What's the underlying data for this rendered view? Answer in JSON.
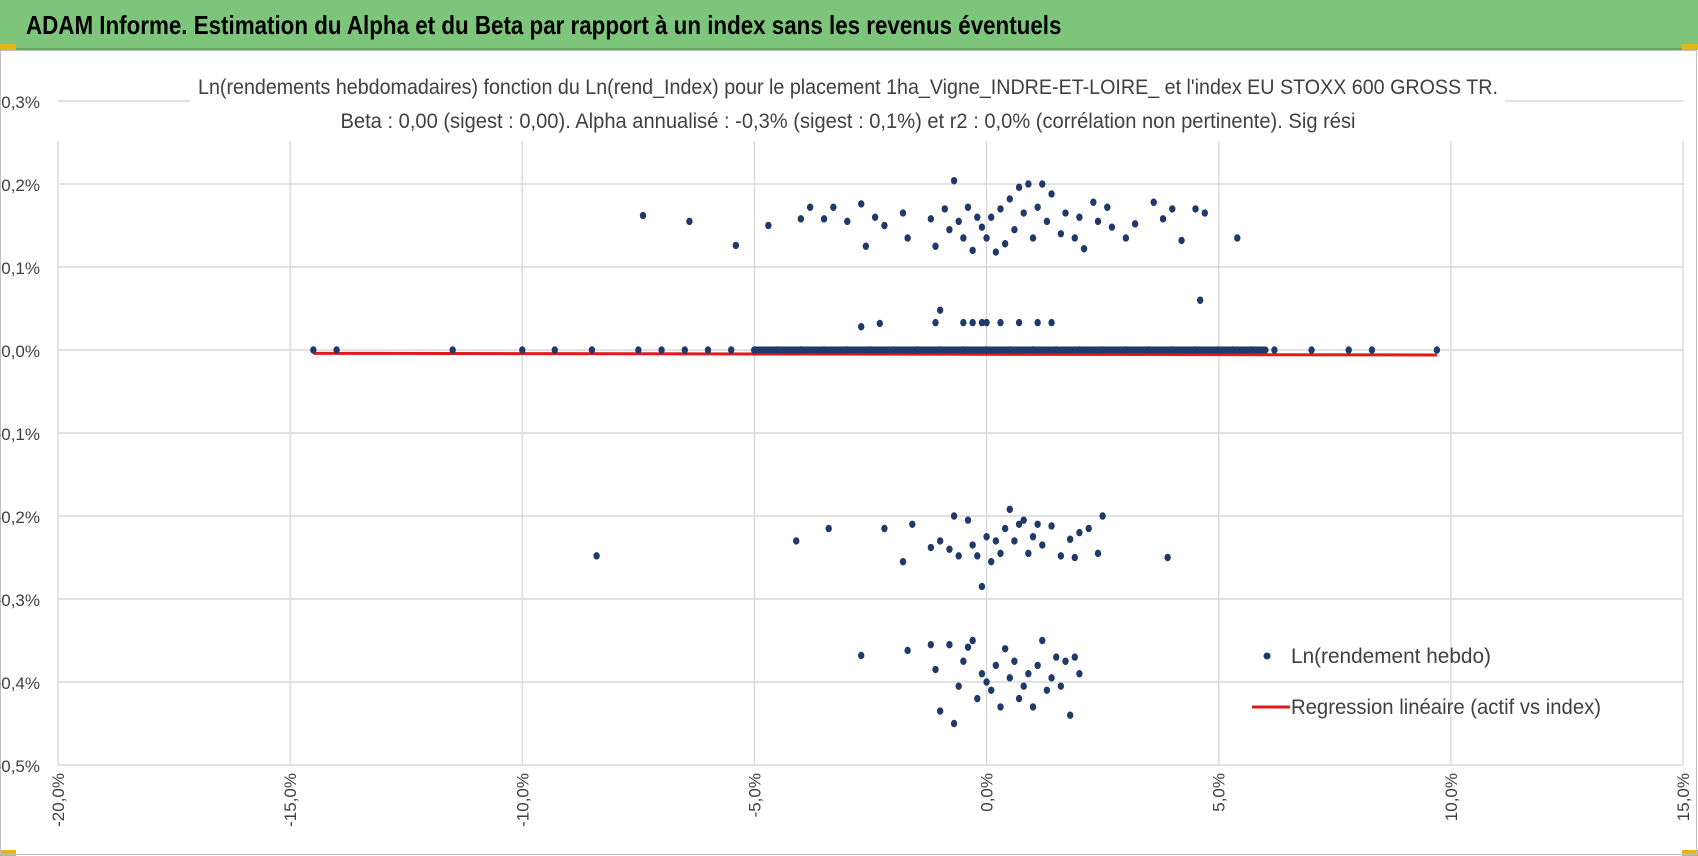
{
  "header": {
    "title": "ADAM Informe. Estimation du Alpha et du Beta par rapport à un index sans les revenus éventuels"
  },
  "colors": {
    "header_bg": "#7dc57b",
    "accent_corner": "#e2b714",
    "points": "#1f3a68",
    "regression": "#e3191c",
    "grid": "#d9d9d9"
  },
  "chart_data": {
    "type": "scatter",
    "title_line1": "Ln(rendements hebdomadaires) fonction du Ln(rend_Index) pour le placement 1ha_Vigne_INDRE-ET-LOIRE_ et l'index EU STOXX 600 GROSS TR.",
    "title_line2": "Beta : 0,00 (sigest : 0,00). Alpha annualisé : -0,3% (sigest : 0,1%) et r2 : 0,0% (corrélation non pertinente). Sig rési",
    "xlim": [
      -20,
      15
    ],
    "ylim": [
      -0.5,
      0.3
    ],
    "x_ticks": [
      -20,
      -15,
      -10,
      -5,
      0,
      5,
      10,
      15
    ],
    "y_ticks": [
      0.3,
      0.2,
      0.1,
      0.0,
      -0.1,
      -0.2,
      -0.3,
      -0.4,
      -0.5
    ],
    "x_tick_labels": [
      "-20,0%",
      "-15,0%",
      "-10,0%",
      "-5,0%",
      "0,0%",
      "5,0%",
      "10,0%",
      "15,0%"
    ],
    "y_tick_labels": [
      "0,3%",
      "0,2%",
      "0,1%",
      "0,0%",
      "-0,1%",
      "-0,2%",
      "-0,3%",
      "-0,4%",
      "-0,5%"
    ],
    "grid": true,
    "legend_position": "bottom-right",
    "series": [
      {
        "name": "Ln(rendement hebdo)",
        "kind": "scatter",
        "points": [
          [
            -14.5,
            0.0
          ],
          [
            -14.0,
            0.0
          ],
          [
            -11.5,
            0.0
          ],
          [
            -10.0,
            0.0
          ],
          [
            -9.3,
            0.0
          ],
          [
            -8.5,
            0.0
          ],
          [
            -7.5,
            0.0
          ],
          [
            -7.0,
            0.0
          ],
          [
            -6.5,
            0.0
          ],
          [
            -6.0,
            0.0
          ],
          [
            -5.5,
            0.0
          ],
          [
            -5.0,
            0.0
          ],
          [
            -4.5,
            0.0
          ],
          [
            -4.0,
            0.0
          ],
          [
            -3.5,
            0.0
          ],
          [
            -3.0,
            0.0
          ],
          [
            -2.5,
            0.0
          ],
          [
            -2.0,
            0.0
          ],
          [
            -1.5,
            0.0
          ],
          [
            -1.0,
            0.0
          ],
          [
            -0.5,
            0.0
          ],
          [
            0.0,
            0.0
          ],
          [
            0.5,
            0.0
          ],
          [
            1.0,
            0.0
          ],
          [
            1.5,
            0.0
          ],
          [
            2.0,
            0.0
          ],
          [
            2.5,
            0.0
          ],
          [
            3.0,
            0.0
          ],
          [
            3.5,
            0.0
          ],
          [
            4.0,
            0.0
          ],
          [
            4.5,
            0.0
          ],
          [
            5.0,
            0.0
          ],
          [
            5.3,
            0.0
          ],
          [
            5.7,
            0.0
          ],
          [
            6.2,
            0.0
          ],
          [
            7.0,
            0.0
          ],
          [
            7.8,
            0.0
          ],
          [
            8.3,
            0.0
          ],
          [
            9.7,
            0.0
          ],
          [
            -2.7,
            0.028
          ],
          [
            -2.3,
            0.032
          ],
          [
            -1.1,
            0.033
          ],
          [
            -1.0,
            0.048
          ],
          [
            -0.5,
            0.033
          ],
          [
            -0.3,
            0.033
          ],
          [
            -0.1,
            0.033
          ],
          [
            0.0,
            0.033
          ],
          [
            0.3,
            0.033
          ],
          [
            0.7,
            0.033
          ],
          [
            1.1,
            0.033
          ],
          [
            1.4,
            0.033
          ],
          [
            -7.4,
            0.162
          ],
          [
            -6.4,
            0.155
          ],
          [
            -5.4,
            0.126
          ],
          [
            -4.7,
            0.15
          ],
          [
            -4.0,
            0.158
          ],
          [
            -3.8,
            0.172
          ],
          [
            -3.5,
            0.158
          ],
          [
            -3.3,
            0.172
          ],
          [
            -3.0,
            0.155
          ],
          [
            -2.7,
            0.176
          ],
          [
            -2.6,
            0.125
          ],
          [
            -2.4,
            0.16
          ],
          [
            -2.2,
            0.15
          ],
          [
            -1.8,
            0.165
          ],
          [
            -1.7,
            0.135
          ],
          [
            -1.2,
            0.158
          ],
          [
            -1.1,
            0.125
          ],
          [
            -0.9,
            0.17
          ],
          [
            -0.8,
            0.145
          ],
          [
            -0.7,
            0.204
          ],
          [
            -0.6,
            0.155
          ],
          [
            -0.5,
            0.135
          ],
          [
            -0.4,
            0.172
          ],
          [
            -0.3,
            0.12
          ],
          [
            -0.2,
            0.16
          ],
          [
            -0.1,
            0.148
          ],
          [
            0.0,
            0.135
          ],
          [
            0.1,
            0.16
          ],
          [
            0.2,
            0.118
          ],
          [
            0.3,
            0.17
          ],
          [
            0.4,
            0.128
          ],
          [
            0.5,
            0.182
          ],
          [
            0.6,
            0.145
          ],
          [
            0.7,
            0.196
          ],
          [
            0.8,
            0.165
          ],
          [
            0.9,
            0.2
          ],
          [
            1.0,
            0.135
          ],
          [
            1.1,
            0.172
          ],
          [
            1.2,
            0.2
          ],
          [
            1.3,
            0.155
          ],
          [
            1.4,
            0.188
          ],
          [
            1.6,
            0.14
          ],
          [
            1.7,
            0.165
          ],
          [
            1.9,
            0.135
          ],
          [
            2.0,
            0.16
          ],
          [
            2.1,
            0.122
          ],
          [
            2.3,
            0.178
          ],
          [
            2.4,
            0.155
          ],
          [
            2.6,
            0.172
          ],
          [
            2.7,
            0.148
          ],
          [
            3.0,
            0.135
          ],
          [
            3.2,
            0.152
          ],
          [
            3.6,
            0.178
          ],
          [
            3.8,
            0.158
          ],
          [
            4.0,
            0.17
          ],
          [
            4.2,
            0.132
          ],
          [
            4.5,
            0.17
          ],
          [
            4.7,
            0.165
          ],
          [
            5.4,
            0.135
          ],
          [
            4.6,
            0.06
          ],
          [
            -8.4,
            -0.248
          ],
          [
            -4.1,
            -0.23
          ],
          [
            -3.4,
            -0.215
          ],
          [
            -2.2,
            -0.215
          ],
          [
            -1.8,
            -0.255
          ],
          [
            -1.6,
            -0.21
          ],
          [
            -1.2,
            -0.238
          ],
          [
            -1.0,
            -0.23
          ],
          [
            -0.8,
            -0.24
          ],
          [
            -0.7,
            -0.2
          ],
          [
            -0.6,
            -0.248
          ],
          [
            -0.4,
            -0.205
          ],
          [
            -0.3,
            -0.235
          ],
          [
            -0.2,
            -0.248
          ],
          [
            -0.1,
            -0.285
          ],
          [
            0.0,
            -0.225
          ],
          [
            0.1,
            -0.255
          ],
          [
            0.2,
            -0.23
          ],
          [
            0.3,
            -0.245
          ],
          [
            0.4,
            -0.215
          ],
          [
            0.5,
            -0.192
          ],
          [
            0.6,
            -0.23
          ],
          [
            0.7,
            -0.21
          ],
          [
            0.8,
            -0.205
          ],
          [
            0.9,
            -0.245
          ],
          [
            1.0,
            -0.225
          ],
          [
            1.1,
            -0.21
          ],
          [
            1.2,
            -0.235
          ],
          [
            1.4,
            -0.212
          ],
          [
            1.6,
            -0.248
          ],
          [
            1.8,
            -0.228
          ],
          [
            1.9,
            -0.25
          ],
          [
            2.0,
            -0.22
          ],
          [
            2.2,
            -0.215
          ],
          [
            2.4,
            -0.245
          ],
          [
            2.5,
            -0.2
          ],
          [
            3.9,
            -0.25
          ],
          [
            -2.7,
            -0.368
          ],
          [
            -1.7,
            -0.362
          ],
          [
            -1.2,
            -0.355
          ],
          [
            -1.1,
            -0.385
          ],
          [
            -1.0,
            -0.435
          ],
          [
            -0.8,
            -0.355
          ],
          [
            -0.7,
            -0.45
          ],
          [
            -0.6,
            -0.405
          ],
          [
            -0.5,
            -0.375
          ],
          [
            -0.4,
            -0.358
          ],
          [
            -0.3,
            -0.35
          ],
          [
            -0.2,
            -0.42
          ],
          [
            -0.1,
            -0.39
          ],
          [
            0.0,
            -0.4
          ],
          [
            0.1,
            -0.41
          ],
          [
            0.2,
            -0.38
          ],
          [
            0.3,
            -0.43
          ],
          [
            0.4,
            -0.36
          ],
          [
            0.5,
            -0.395
          ],
          [
            0.6,
            -0.375
          ],
          [
            0.7,
            -0.42
          ],
          [
            0.8,
            -0.405
          ],
          [
            0.9,
            -0.39
          ],
          [
            1.0,
            -0.43
          ],
          [
            1.1,
            -0.38
          ],
          [
            1.2,
            -0.35
          ],
          [
            1.3,
            -0.41
          ],
          [
            1.4,
            -0.395
          ],
          [
            1.5,
            -0.37
          ],
          [
            1.6,
            -0.405
          ],
          [
            1.7,
            -0.375
          ],
          [
            1.8,
            -0.44
          ],
          [
            1.9,
            -0.37
          ],
          [
            2.0,
            -0.39
          ]
        ]
      },
      {
        "name": "Regression linéaire (actif vs index)",
        "kind": "line",
        "points": [
          [
            -14.5,
            -0.004
          ],
          [
            9.7,
            -0.006
          ]
        ]
      }
    ]
  }
}
